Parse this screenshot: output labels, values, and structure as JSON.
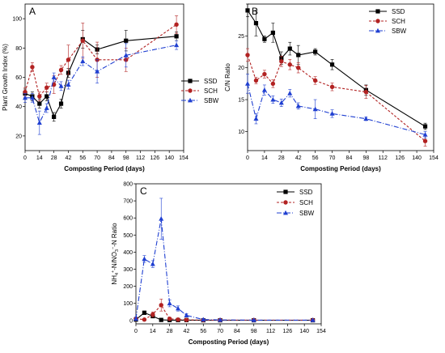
{
  "figure": {
    "series_styles": {
      "SSD": {
        "color": "#000000",
        "marker": "square",
        "dash": ""
      },
      "SCH": {
        "color": "#b22222",
        "marker": "circle",
        "dash": "3,2"
      },
      "SBW": {
        "color": "#1f3fd1",
        "marker": "triangle",
        "dash": "6,2,1,2"
      }
    }
  },
  "chart_data": [
    {
      "type": "line",
      "panel_label": "A",
      "xlabel": "Composting Period (days)",
      "ylabel": "Plant Growth Index (%)",
      "xlim": [
        0,
        154
      ],
      "ylim": [
        10,
        110
      ],
      "xticks": [
        0,
        14,
        28,
        42,
        56,
        70,
        84,
        98,
        112,
        126,
        140,
        154
      ],
      "xtick_labels": [
        "0",
        "14",
        "28",
        "42",
        "56",
        "70",
        "84",
        "98",
        "112",
        "126",
        "140",
        "154"
      ],
      "yticks": [
        20,
        40,
        60,
        80,
        100
      ],
      "ytick_labels": [
        "20",
        "40",
        "60",
        "80",
        "100"
      ],
      "legend_position": "right",
      "series": [
        {
          "name": "SSD",
          "x": [
            0,
            7,
            14,
            21,
            28,
            35,
            42,
            56,
            70,
            98,
            147
          ],
          "y": [
            49,
            47,
            42,
            47,
            33,
            42,
            63,
            86,
            79,
            85,
            88
          ],
          "err": [
            3,
            3,
            3,
            3,
            3,
            3,
            3,
            6,
            3,
            7,
            3
          ]
        },
        {
          "name": "SCH",
          "x": [
            0,
            7,
            14,
            21,
            28,
            35,
            42,
            56,
            70,
            98,
            147
          ],
          "y": [
            50,
            67,
            47,
            53,
            55,
            65,
            72,
            85,
            72,
            72,
            96
          ],
          "err": [
            3,
            3,
            3,
            3,
            6,
            3,
            10,
            12,
            12,
            8,
            6
          ]
        },
        {
          "name": "SBW",
          "x": [
            0,
            7,
            14,
            21,
            28,
            35,
            42,
            56,
            70,
            98,
            147
          ],
          "y": [
            46,
            46,
            29,
            39,
            60,
            54,
            55,
            71,
            64,
            75,
            82
          ],
          "err": [
            3,
            3,
            8,
            3,
            3,
            3,
            3,
            3,
            8,
            8,
            3
          ]
        }
      ]
    },
    {
      "type": "line",
      "panel_label": "B",
      "xlabel": "Composting Period (days)",
      "ylabel": "C/N Ratio",
      "xlim": [
        0,
        154
      ],
      "ylim": [
        7,
        30
      ],
      "xticks": [
        0,
        14,
        28,
        42,
        56,
        70,
        84,
        98,
        112,
        126,
        140,
        154
      ],
      "xtick_labels": [
        "0",
        "14",
        "28",
        "42",
        "56",
        "70",
        "84",
        "98",
        "112",
        "126",
        "140",
        "154"
      ],
      "yticks": [
        10,
        15,
        20,
        25
      ],
      "ytick_labels": [
        "10",
        "15",
        "20",
        "25"
      ],
      "legend_position": "top-right",
      "series": [
        {
          "name": "SSD",
          "x": [
            0,
            7,
            14,
            21,
            28,
            35,
            42,
            56,
            70,
            98,
            147
          ],
          "y": [
            29,
            27,
            24.5,
            25.5,
            21.5,
            23,
            22,
            22.5,
            20.5,
            16.5,
            10.8
          ],
          "err": [
            1,
            2,
            0.5,
            1.5,
            1,
            1,
            1.5,
            0.5,
            0.8,
            0.8,
            0.5
          ]
        },
        {
          "name": "SCH",
          "x": [
            0,
            7,
            14,
            21,
            28,
            35,
            42,
            56,
            70,
            98,
            147
          ],
          "y": [
            22,
            18,
            19,
            17.5,
            21,
            20.5,
            20,
            18,
            17,
            16.2,
            8.5
          ],
          "err": [
            1,
            0.5,
            0.6,
            0.6,
            0.8,
            0.8,
            0.8,
            0.6,
            0.6,
            1,
            0.8
          ]
        },
        {
          "name": "SBW",
          "x": [
            0,
            7,
            14,
            21,
            28,
            35,
            42,
            56,
            70,
            98,
            147
          ],
          "y": [
            17.5,
            12,
            16.5,
            15,
            14.5,
            16,
            14,
            13.5,
            12.8,
            12,
            9.5
          ],
          "err": [
            1.5,
            0.8,
            0.8,
            0.6,
            0.6,
            0.6,
            0.5,
            1.5,
            0.6,
            0.3,
            0.5
          ]
        }
      ]
    },
    {
      "type": "line",
      "panel_label": "C",
      "xlabel": "Composting Period (days)",
      "ylabel": "NH4+-N/NO3−-N Ratio",
      "ylabel_parts": {
        "p1": "NH",
        "sub1": "4",
        "sup1": "+",
        "p2": "-N/NO",
        "sub2": "3",
        "sup2": "−",
        "p3": "-N Ratio"
      },
      "xlim": [
        0,
        154
      ],
      "ylim": [
        -20,
        800
      ],
      "xticks": [
        0,
        14,
        28,
        42,
        56,
        70,
        84,
        98,
        112,
        126,
        140,
        154
      ],
      "xtick_labels": [
        "0",
        "14",
        "28",
        "42",
        "56",
        "70",
        "84",
        "98",
        "112",
        "126",
        "140",
        "154"
      ],
      "yticks": [
        0,
        100,
        200,
        300,
        400,
        500,
        600,
        700,
        800
      ],
      "ytick_labels": [
        "0",
        "100",
        "200",
        "300",
        "400",
        "500",
        "600",
        "700",
        "800"
      ],
      "legend_position": "top-right",
      "series": [
        {
          "name": "SSD",
          "x": [
            0,
            7,
            14,
            21,
            28,
            35,
            42,
            56,
            70,
            98,
            147
          ],
          "y": [
            5,
            45,
            25,
            3,
            2,
            2,
            2,
            1,
            1,
            1,
            1
          ],
          "err": [
            5,
            10,
            8,
            2,
            2,
            2,
            2,
            1,
            1,
            1,
            1
          ]
        },
        {
          "name": "SCH",
          "x": [
            0,
            7,
            14,
            21,
            28,
            35,
            42,
            56,
            70,
            98,
            147
          ],
          "y": [
            10,
            5,
            35,
            90,
            10,
            5,
            3,
            2,
            2,
            2,
            2
          ],
          "err": [
            5,
            5,
            15,
            35,
            8,
            5,
            3,
            2,
            2,
            2,
            2
          ]
        },
        {
          "name": "SBW",
          "x": [
            0,
            7,
            14,
            21,
            28,
            35,
            42,
            56,
            70,
            98,
            147
          ],
          "y": [
            10,
            360,
            330,
            595,
            100,
            70,
            30,
            5,
            3,
            2,
            2
          ],
          "err": [
            10,
            20,
            20,
            120,
            20,
            15,
            10,
            5,
            3,
            2,
            2
          ]
        }
      ]
    }
  ]
}
